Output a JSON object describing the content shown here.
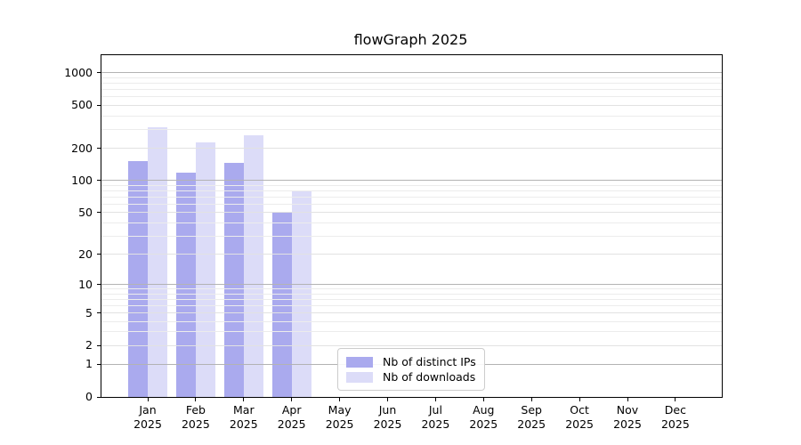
{
  "chart_data": {
    "type": "bar",
    "title": "flowGraph 2025",
    "scale": "log1p",
    "grid": true,
    "legend_position": "bottom-center",
    "categories": [
      "Jan 2025",
      "Feb 2025",
      "Mar 2025",
      "Apr 2025",
      "May 2025",
      "Jun 2025",
      "Jul 2025",
      "Aug 2025",
      "Sep 2025",
      "Oct 2025",
      "Nov 2025",
      "Dec 2025"
    ],
    "series": [
      {
        "name": "Nb of distinct IPs",
        "color": "#aaaaee",
        "values": [
          151,
          118,
          146,
          50,
          null,
          null,
          null,
          null,
          null,
          null,
          null,
          null
        ]
      },
      {
        "name": "Nb of downloads",
        "color": "#dcdcf8",
        "values": [
          315,
          227,
          265,
          81,
          null,
          null,
          null,
          null,
          null,
          null,
          null,
          null
        ]
      }
    ],
    "yticks": [
      0,
      1,
      2,
      5,
      10,
      20,
      50,
      100,
      200,
      500,
      1000
    ],
    "ylim": [
      0,
      1000
    ],
    "xlabel": "",
    "ylabel": ""
  },
  "colors": {
    "bar_ips": "#aaaaee",
    "bar_downloads": "#dcdcf8",
    "axis": "#000000",
    "grid_major": "#b3b3b3",
    "grid_labeled": "#e2e2e2",
    "grid_minor": "#ececec",
    "legend_border": "#cccccc",
    "background": "#ffffff",
    "text": "#000000"
  }
}
